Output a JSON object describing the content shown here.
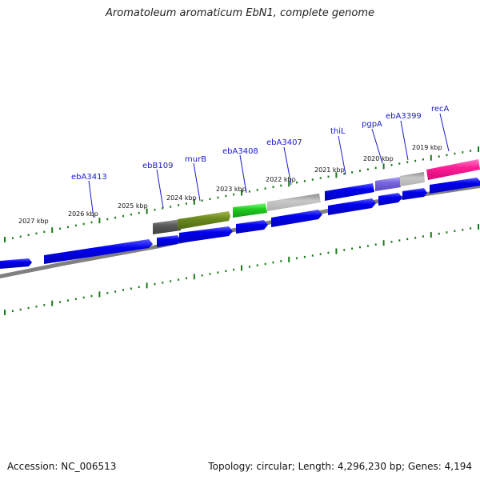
{
  "title": "Aromatoleum aromaticum EbN1, complete genome",
  "footer": {
    "accession": "Accession: NC_006513",
    "topology": "Topology: circular; Length: 4,296,230 bp; Genes: 4,194"
  },
  "colors": {
    "gene_blue": "#0000ee",
    "gene_label": "#1a1acc",
    "tick_green": "#1a7a1a",
    "backbone": "#808080"
  },
  "scale_labels": [
    "2027 kbp",
    "2026 kbp",
    "2025 kbp",
    "2024 kbp",
    "2023 kbp",
    "2022 kbp",
    "2021 kbp",
    "2020 kbp",
    "2019 kbp"
  ],
  "gene_labels": [
    "ebA3413",
    "ebB109",
    "murB",
    "ebA3408",
    "ebA3407",
    "thiL",
    "pgpA",
    "ebA3399",
    "recA"
  ]
}
